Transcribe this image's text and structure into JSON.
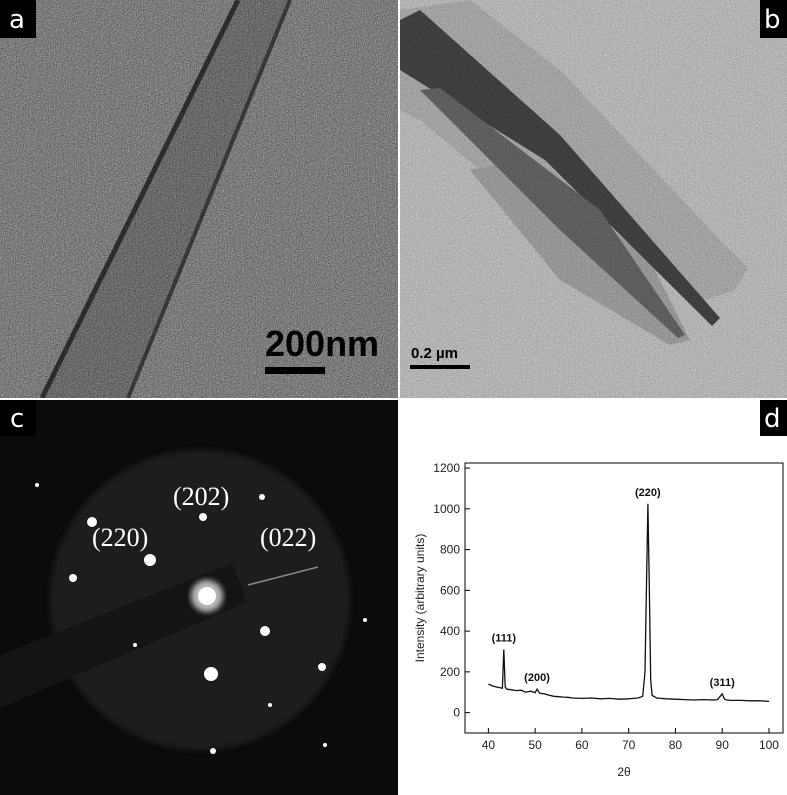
{
  "panels": [
    {
      "label": "a",
      "scale_bar": "200nm"
    },
    {
      "label": "b",
      "scale_bar": "0.2 µm"
    },
    {
      "label": "c",
      "spots": [
        "(202)",
        "(220)",
        "(022)"
      ]
    },
    {
      "label": "d"
    }
  ],
  "chart_data": {
    "type": "line",
    "x_label": "2θ",
    "y_label": "Intensity (arbitrary units)",
    "x": [
      40,
      41,
      42,
      43,
      43.3,
      43.6,
      44,
      45,
      46,
      47,
      48,
      49,
      50,
      50.4,
      51,
      52,
      53,
      54,
      55,
      56,
      57,
      58,
      60,
      62,
      64,
      66,
      68,
      70,
      71,
      72,
      73,
      73.5,
      73.8,
      74.1,
      74.4,
      74.7,
      75,
      76,
      78,
      80,
      82,
      84,
      86,
      88,
      89,
      90,
      90.5,
      91,
      92,
      94,
      96,
      98,
      100
    ],
    "values": [
      140,
      130,
      125,
      120,
      310,
      125,
      115,
      112,
      108,
      110,
      100,
      105,
      98,
      115,
      95,
      92,
      85,
      80,
      78,
      76,
      75,
      72,
      70,
      72,
      68,
      70,
      66,
      68,
      70,
      72,
      80,
      200,
      600,
      1025,
      620,
      160,
      85,
      72,
      68,
      66,
      64,
      62,
      64,
      62,
      64,
      92,
      66,
      62,
      60,
      60,
      58,
      58,
      55
    ],
    "color": "#111111",
    "peak_labels": [
      {
        "label": "(111)",
        "x": 43.3,
        "y": 310
      },
      {
        "label": "(200)",
        "x": 50.4,
        "y": 115
      },
      {
        "label": "(220)",
        "x": 74.1,
        "y": 1025
      },
      {
        "label": "(311)",
        "x": 90,
        "y": 92
      }
    ],
    "xlim": [
      35,
      103
    ],
    "ylim": [
      -100,
      1225
    ],
    "xticks": [
      40,
      50,
      60,
      70,
      80,
      90,
      100
    ],
    "yticks": [
      0,
      200,
      400,
      600,
      800,
      1000,
      1200
    ]
  }
}
